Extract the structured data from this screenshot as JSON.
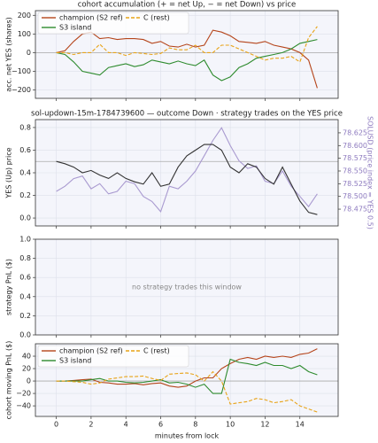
{
  "chart_data": [
    {
      "type": "line",
      "title": "cohort accumulation (+ = net Up, − = net Down) vs price",
      "ylabel": "acc. net YES (shares)",
      "x": [
        0,
        0.5,
        1,
        1.5,
        2,
        2.5,
        3,
        3.5,
        4,
        4.5,
        5,
        5.5,
        6,
        6.5,
        7,
        7.5,
        8,
        8.5,
        9,
        9.5,
        10,
        10.5,
        11,
        11.5,
        12,
        12.5,
        13,
        13.5,
        14,
        14.5,
        15
      ],
      "series": [
        {
          "name": "champion (S2 ref)",
          "color": "#b5451b",
          "dash": false,
          "values": [
            0,
            10,
            60,
            100,
            110,
            75,
            80,
            70,
            75,
            75,
            70,
            50,
            60,
            35,
            30,
            45,
            30,
            40,
            120,
            110,
            90,
            60,
            55,
            50,
            60,
            40,
            30,
            20,
            0,
            -40,
            -190
          ]
        },
        {
          "name": "S3 island",
          "color": "#2e8b2e",
          "dash": false,
          "values": [
            0,
            -10,
            -50,
            -100,
            -110,
            -120,
            -80,
            -70,
            -60,
            -75,
            -65,
            -40,
            -50,
            -60,
            -45,
            -60,
            -70,
            -40,
            -120,
            -150,
            -130,
            -80,
            -60,
            -30,
            -20,
            -10,
            0,
            20,
            50,
            60,
            70
          ]
        },
        {
          "name": "C (rest)",
          "color": "#e8a317",
          "dash": true,
          "values": [
            0,
            0,
            -10,
            0,
            0,
            45,
            0,
            0,
            -15,
            0,
            -5,
            -10,
            -5,
            25,
            15,
            15,
            40,
            0,
            0,
            40,
            40,
            20,
            0,
            -20,
            -40,
            -30,
            -30,
            -20,
            -50,
            80,
            140
          ]
        }
      ],
      "xlim": [
        -1.2,
        16.2
      ],
      "xticks": [
        0,
        2,
        4,
        6,
        8,
        10,
        12,
        14
      ],
      "ylim": [
        -245,
        225
      ],
      "yticks": [
        {
          "value": -200,
          "label": "−200"
        },
        {
          "value": -100,
          "label": "−100"
        },
        0,
        100,
        200
      ],
      "hline": 0,
      "grid": true,
      "legend": "upper left"
    },
    {
      "type": "line",
      "title": "sol-updown-15m-1784739600 — outcome Down · strategy trades on the YES price",
      "ylabel": "YES (Up) price",
      "y2label": "SOLUSD (price index = YES 0.5)",
      "x": [
        0,
        0.5,
        1,
        1.5,
        2,
        2.5,
        3,
        3.5,
        4,
        4.5,
        5,
        5.5,
        6,
        6.5,
        7,
        7.5,
        8,
        8.5,
        9,
        9.5,
        10,
        10.5,
        11,
        11.5,
        12,
        12.5,
        13,
        13.5,
        14,
        14.5,
        15
      ],
      "series": [
        {
          "color": "#a99ad0",
          "dash": false,
          "axis": "y2",
          "values": [
            78.51,
            78.52,
            78.535,
            78.54,
            78.515,
            78.525,
            78.505,
            78.51,
            78.53,
            78.525,
            78.5,
            78.49,
            78.47,
            78.52,
            78.515,
            78.53,
            78.55,
            78.58,
            78.61,
            78.635,
            78.6,
            78.57,
            78.555,
            78.56,
            78.53,
            78.525,
            78.55,
            78.52,
            78.5,
            78.48,
            78.505
          ]
        },
        {
          "color": "#333333",
          "dash": false,
          "values": [
            0.5,
            0.48,
            0.45,
            0.4,
            0.42,
            0.38,
            0.35,
            0.4,
            0.35,
            0.32,
            0.3,
            0.4,
            0.28,
            0.3,
            0.45,
            0.55,
            0.6,
            0.65,
            0.65,
            0.6,
            0.45,
            0.4,
            0.48,
            0.45,
            0.35,
            0.3,
            0.45,
            0.3,
            0.15,
            0.05,
            0.03
          ]
        }
      ],
      "xlim": [
        -1.2,
        16.2
      ],
      "xticks": [
        0,
        2,
        4,
        6,
        8,
        10,
        12,
        14
      ],
      "ylim": [
        -0.07,
        0.87
      ],
      "yticks": [
        {
          "value": 0,
          "label": "0.0"
        },
        0.2,
        0.4,
        0.6,
        0.8
      ],
      "y2lim": [
        78.442,
        78.651
      ],
      "y2ticks": [
        78.475,
        {
          "value": 78.5,
          "label": "78.500"
        },
        78.525,
        {
          "value": 78.55,
          "label": "78.550"
        },
        78.575,
        {
          "value": 78.6,
          "label": "78.600"
        },
        78.625
      ],
      "hline": 0.5,
      "grid": true
    },
    {
      "type": "line",
      "ylabel": "strategy PnL ($)",
      "annotation": "no strategy trades this window",
      "x": [],
      "series": [],
      "xlim": [
        -1.2,
        16.2
      ],
      "xticks": [
        0,
        2,
        4,
        6,
        8,
        10,
        12,
        14
      ],
      "ylim": [
        0,
        1
      ],
      "yticks": [
        {
          "value": 0,
          "label": "0.0"
        },
        0.2,
        0.4,
        0.6,
        0.8,
        {
          "value": 1,
          "label": "1.0"
        }
      ],
      "grid": true
    },
    {
      "type": "line",
      "ylabel": "cohort moving PnL ($)",
      "xlabel": "minutes from lock",
      "x": [
        0,
        0.5,
        1,
        1.5,
        2,
        2.5,
        3,
        3.5,
        4,
        4.5,
        5,
        5.5,
        6,
        6.5,
        7,
        7.5,
        8,
        8.5,
        9,
        9.5,
        10,
        10.5,
        11,
        11.5,
        12,
        12.5,
        13,
        13.5,
        14,
        14.5,
        15
      ],
      "series": [
        {
          "name": "champion (S2 ref)",
          "color": "#b5451b",
          "dash": false,
          "values": [
            0,
            0,
            1,
            2,
            3,
            -2,
            -3,
            -5,
            -5,
            -4,
            -6,
            -4,
            -3,
            -8,
            -10,
            -8,
            0,
            5,
            5,
            20,
            28,
            35,
            38,
            35,
            40,
            38,
            40,
            38,
            43,
            45,
            52
          ]
        },
        {
          "name": "S3 island",
          "color": "#2e8b2e",
          "dash": false,
          "values": [
            0,
            0,
            0,
            0,
            2,
            4,
            0,
            0,
            -2,
            -3,
            -2,
            0,
            2,
            -3,
            -2,
            -5,
            -10,
            -5,
            -20,
            -20,
            35,
            30,
            28,
            25,
            30,
            25,
            25,
            20,
            25,
            15,
            10
          ]
        },
        {
          "name": "C (rest)",
          "color": "#e8a317",
          "dash": true,
          "values": [
            0,
            0,
            -1,
            -2,
            -5,
            -3,
            3,
            5,
            7,
            7,
            8,
            4,
            1,
            11,
            12,
            13,
            10,
            0,
            15,
            0,
            -37,
            -35,
            -33,
            -28,
            -30,
            -35,
            -33,
            -30,
            -40,
            -45,
            -50
          ]
        }
      ],
      "xlim": [
        -1.2,
        16.2
      ],
      "xticks": [
        0,
        2,
        4,
        6,
        8,
        10,
        12,
        14
      ],
      "ylim": [
        -57,
        60
      ],
      "yticks": [
        {
          "value": -40,
          "label": "−40"
        },
        {
          "value": -20,
          "label": "−20"
        },
        0,
        20,
        40
      ],
      "hline": 0,
      "grid": true,
      "legend": "upper left"
    }
  ]
}
